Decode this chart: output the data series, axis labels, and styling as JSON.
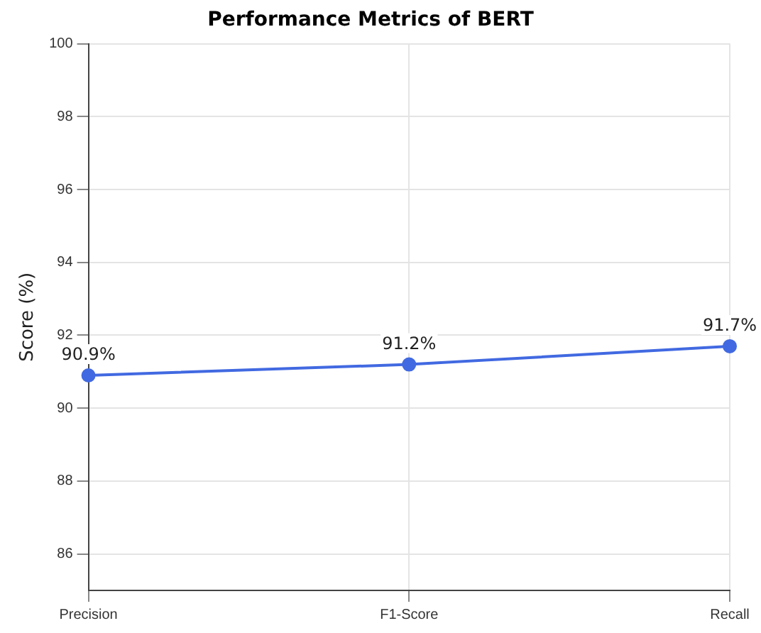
{
  "chart_data": {
    "type": "line",
    "title": "Performance Metrics of BERT",
    "ylabel": "Score (%)",
    "categories": [
      "Precision",
      "F1-Score",
      "Recall"
    ],
    "series": [
      {
        "color": "#4169e1",
        "values": [
          90.9,
          91.2,
          91.7
        ],
        "value_labels": [
          "90.9%",
          "91.2%",
          "91.7%"
        ]
      }
    ],
    "ylim": [
      85,
      100
    ],
    "yticks": [
      86,
      88,
      90,
      92,
      94,
      96,
      98,
      100
    ],
    "grid": true,
    "marker": "circle",
    "line_style": "solid",
    "legend": false
  }
}
